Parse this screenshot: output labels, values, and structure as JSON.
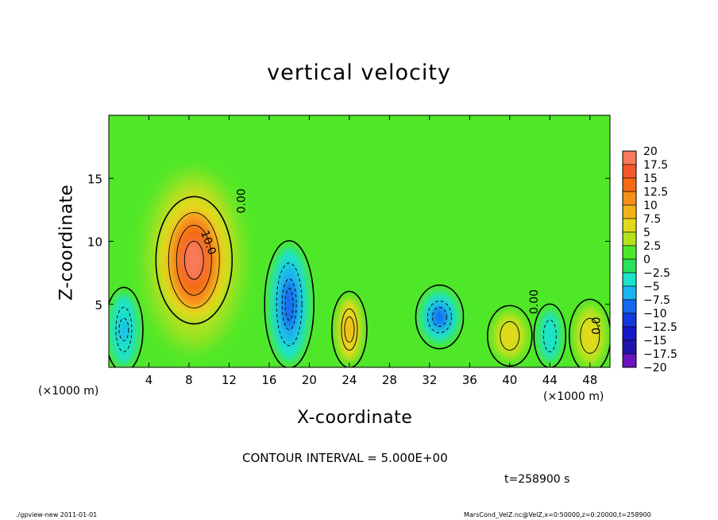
{
  "chart_data": {
    "type": "heatmap",
    "title": "vertical velocity",
    "xlabel": "X-coordinate",
    "ylabel": "Z-coordinate",
    "x_units_label": "(×1000 m)",
    "xlim": [
      0,
      50
    ],
    "ylim": [
      0,
      20
    ],
    "x_ticks": [
      4,
      8,
      12,
      16,
      20,
      24,
      28,
      32,
      36,
      40,
      44,
      48
    ],
    "y_ticks": [
      5,
      10,
      15
    ],
    "colorbar": {
      "labels": [
        "20",
        "17.5",
        "15",
        "12.5",
        "10",
        "7.5",
        "5",
        "2.5",
        "0",
        "−2.5",
        "−5",
        "−7.5",
        "−10",
        "−12.5",
        "−15",
        "−17.5",
        "−20"
      ],
      "colors": [
        "#fa9696",
        "#f87a5a",
        "#f55a2a",
        "#f46b14",
        "#f68e1c",
        "#f4b21a",
        "#e4d81a",
        "#b6e21c",
        "#4ee828",
        "#28e25a",
        "#1ce2c8",
        "#1cb4f0",
        "#1468f0",
        "#1438dc",
        "#1418c8",
        "#2214aa",
        "#6a14c0"
      ]
    },
    "contour_labels": [
      "0.00",
      "10.0",
      "0.00",
      "0.0"
    ],
    "contour_interval_text": "CONTOUR INTERVAL = 5.000E+00",
    "time_text": "t=258900 s",
    "features": [
      {
        "kind": "updraft",
        "x": 8.5,
        "z": 8.5,
        "peak": 17
      },
      {
        "kind": "downdraft",
        "x": 18,
        "z": 5,
        "peak": -11
      },
      {
        "kind": "downdraft",
        "x": 1.5,
        "z": 3,
        "peak": -8
      },
      {
        "kind": "downdraft",
        "x": 33,
        "z": 4,
        "peak": -9
      },
      {
        "kind": "downdraft",
        "x": 44,
        "z": 2.5,
        "peak": -5
      },
      {
        "kind": "updraft",
        "x": 24,
        "z": 3,
        "peak": 8
      },
      {
        "kind": "updraft",
        "x": 40,
        "z": 2.5,
        "peak": 4
      },
      {
        "kind": "updraft",
        "x": 48,
        "z": 2.5,
        "peak": 5
      }
    ]
  },
  "footer": {
    "left": "./gpview-new  2011-01-01",
    "right": "MarsCond_VelZ.nc@VelZ,x=0:50000,z=0:20000,t=258900"
  }
}
